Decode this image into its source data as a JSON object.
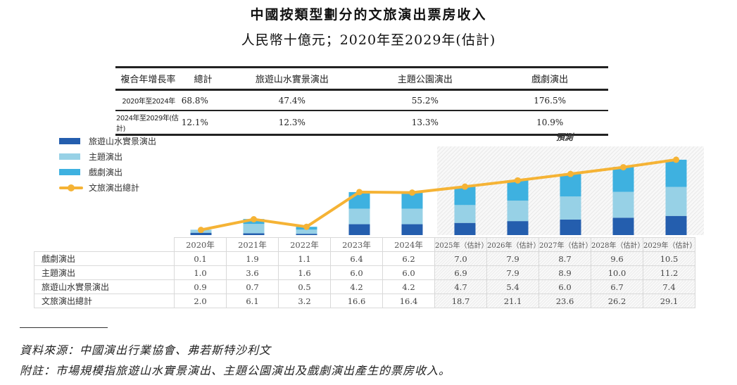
{
  "title": "中國按類型劃分的文旅演出票房收入",
  "subtitle": "人民幣十億元；2020年至2029年(估計)",
  "cagr_table": {
    "headers": [
      "複合年增長率",
      "總計",
      "旅遊山水實景演出",
      "主題公園演出",
      "戲劇演出"
    ],
    "rows": [
      {
        "label": "2020年至2024年",
        "values": [
          "68.8%",
          "47.4%",
          "55.2%",
          "176.5%"
        ]
      },
      {
        "label": "2024年至2029年(估計)",
        "values": [
          "12.1%",
          "12.3%",
          "13.3%",
          "10.9%"
        ]
      }
    ]
  },
  "forecast_label": "預測",
  "colors": {
    "landscape": "#245eae",
    "theme_park": "#97d1e6",
    "drama": "#3eb1e0",
    "total_line": "#f5b335"
  },
  "chart_data": {
    "type": "bar",
    "stacked": true,
    "title": "中國按類型劃分的文旅演出票房收入",
    "subtitle": "人民幣十億元；2020年至2029年(估計)",
    "categories": [
      "2020年",
      "2021年",
      "2022年",
      "2023年",
      "2024年",
      "2025年（估計）",
      "2026年（估計）",
      "2027年（估計）",
      "2028年（估計）",
      "2029年（估計）"
    ],
    "forecast_start_index": 5,
    "series": [
      {
        "name": "旅遊山水實景演出",
        "values": [
          0.9,
          0.7,
          0.5,
          4.2,
          4.2,
          4.7,
          5.4,
          6.0,
          6.7,
          7.4
        ]
      },
      {
        "name": "主題演出",
        "values": [
          1.0,
          3.6,
          1.6,
          6.0,
          6.0,
          6.9,
          7.9,
          8.9,
          10.0,
          11.2
        ]
      },
      {
        "name": "戲劇演出",
        "values": [
          0.1,
          1.9,
          1.1,
          6.4,
          6.2,
          7.0,
          7.9,
          8.7,
          9.6,
          10.5
        ]
      }
    ],
    "line_series": {
      "name": "文旅演出總計",
      "values": [
        2.0,
        6.1,
        3.2,
        16.6,
        16.4,
        18.7,
        21.1,
        23.6,
        26.2,
        29.1
      ]
    },
    "legend": [
      "旅遊山水實景演出",
      "主題演出",
      "戲劇演出",
      "文旅演出總計"
    ],
    "legend_position": "top-left",
    "xlabel": "",
    "ylabel": "",
    "ylim": [
      0,
      30
    ],
    "grid": false
  },
  "data_table": {
    "columns": [
      "2020年",
      "2021年",
      "2022年",
      "2023年",
      "2024年",
      "2025年（估計）",
      "2026年（估計）",
      "2027年（估計）",
      "2028年（估計）",
      "2029年（估計）"
    ],
    "rows": [
      {
        "label": "戲劇演出",
        "values": [
          "0.1",
          "1.9",
          "1.1",
          "6.4",
          "6.2",
          "7.0",
          "7.9",
          "8.7",
          "9.6",
          "10.5"
        ]
      },
      {
        "label": "主題演出",
        "values": [
          "1.0",
          "3.6",
          "1.6",
          "6.0",
          "6.0",
          "6.9",
          "7.9",
          "8.9",
          "10.0",
          "11.2"
        ]
      },
      {
        "label": "旅遊山水實景演出",
        "values": [
          "0.9",
          "0.7",
          "0.5",
          "4.2",
          "4.2",
          "4.7",
          "5.4",
          "6.0",
          "6.7",
          "7.4"
        ]
      },
      {
        "label": "文旅演出總計",
        "values": [
          "2.0",
          "6.1",
          "3.2",
          "16.6",
          "16.4",
          "18.7",
          "21.1",
          "23.6",
          "26.2",
          "29.1"
        ]
      }
    ]
  },
  "notes": {
    "source": "資料來源：中國演出行業協會、弗若斯特沙利文",
    "note": "附註：市場規模指旅遊山水實景演出、主題公園演出及戲劇演出產生的票房收入。"
  }
}
